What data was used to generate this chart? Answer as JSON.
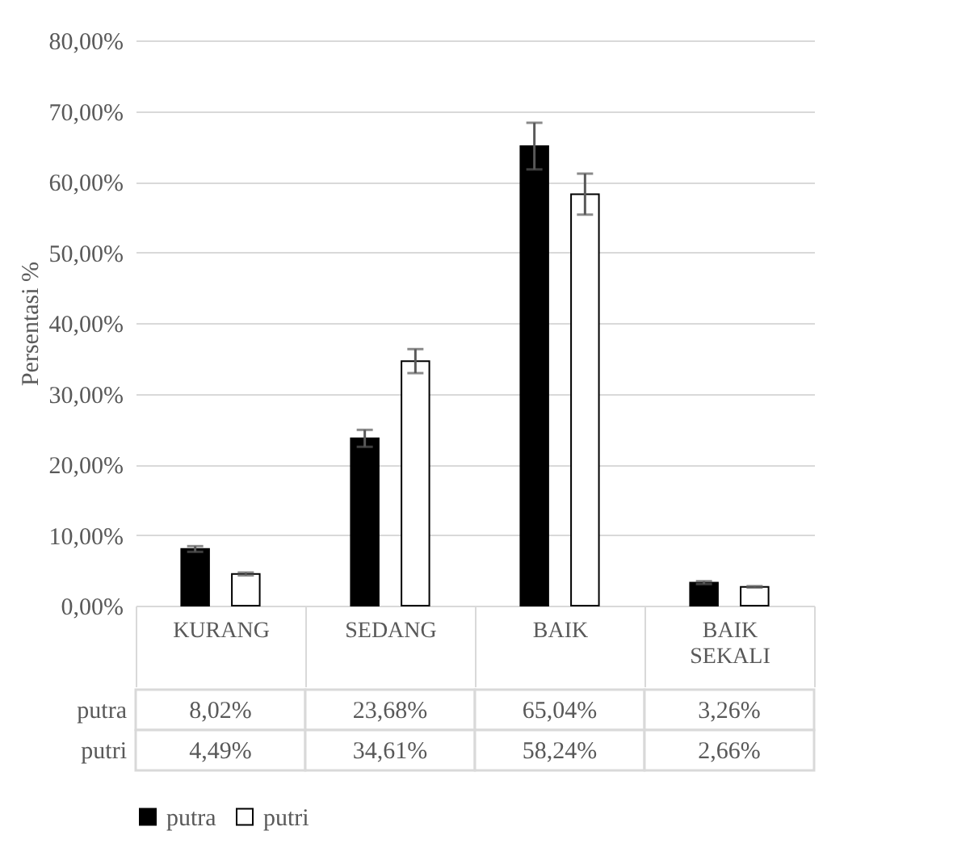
{
  "chart_data": {
    "type": "bar",
    "ylabel": "Persentasi %",
    "categories": [
      "KURANG",
      "SEDANG",
      "BAIK",
      "BAIK SEKALI"
    ],
    "series": [
      {
        "name": "putra",
        "color": "#000000",
        "values": [
          8.02,
          23.68,
          65.04,
          3.26
        ],
        "errors": [
          0.4,
          1.2,
          3.3,
          0.2
        ],
        "value_labels": [
          "8,02%",
          "23,68%",
          "65,04%",
          "3,26%"
        ]
      },
      {
        "name": "putri",
        "color": "#ffffff",
        "values": [
          4.49,
          34.61,
          58.24,
          2.66
        ],
        "errors": [
          0.2,
          1.7,
          2.9,
          0.1
        ],
        "value_labels": [
          "4,49%",
          "34,61%",
          "58,24%",
          "2,66%"
        ]
      }
    ],
    "ylim": [
      0,
      80
    ],
    "yticks": [
      {
        "value": 0,
        "label": "0,00%"
      },
      {
        "value": 10,
        "label": "10,00%"
      },
      {
        "value": 20,
        "label": "20,00%"
      },
      {
        "value": 30,
        "label": "30,00%"
      },
      {
        "value": 40,
        "label": "40,00%"
      },
      {
        "value": 50,
        "label": "50,00%"
      },
      {
        "value": 60,
        "label": "60,00%"
      },
      {
        "value": 70,
        "label": "70,00%"
      },
      {
        "value": 80,
        "label": "80,00%"
      }
    ],
    "grid": "y",
    "legend": "bottom"
  }
}
